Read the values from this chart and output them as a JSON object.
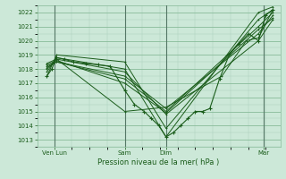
{
  "title": "",
  "xlabel": "Pression niveau de la mer( hPa )",
  "ylim": [
    1012.5,
    1022.5
  ],
  "yticks": [
    1013,
    1014,
    1015,
    1016,
    1017,
    1018,
    1019,
    1020,
    1021,
    1022
  ],
  "bg_color": "#cce8d8",
  "grid_color_major": "#88bb99",
  "grid_color_minor": "#aaccbb",
  "line_color": "#1a5c1a",
  "day_labels": [
    "Ven Lun",
    "Sam",
    "Dim",
    "Mar"
  ],
  "day_positions": [
    0.07,
    0.36,
    0.53,
    0.93
  ],
  "xlim": [
    0.0,
    1.0
  ],
  "series": [
    {
      "x": [
        0.04,
        0.08,
        0.36,
        0.53,
        0.91,
        0.97
      ],
      "y": [
        1017.5,
        1019.0,
        1018.5,
        1013.8,
        1021.5,
        1022.2
      ]
    },
    {
      "x": [
        0.04,
        0.08,
        0.36,
        0.53,
        0.91,
        0.97
      ],
      "y": [
        1017.8,
        1018.8,
        1018.0,
        1013.2,
        1022.0,
        1022.4
      ]
    },
    {
      "x": [
        0.04,
        0.08,
        0.36,
        0.53,
        0.91,
        0.97
      ],
      "y": [
        1018.0,
        1018.7,
        1017.8,
        1014.8,
        1020.0,
        1021.5
      ]
    },
    {
      "x": [
        0.04,
        0.08,
        0.36,
        0.53,
        0.91,
        0.97
      ],
      "y": [
        1018.1,
        1018.5,
        1017.5,
        1015.2,
        1020.5,
        1021.8
      ]
    },
    {
      "x": [
        0.04,
        0.08,
        0.36,
        0.53,
        0.91,
        0.97
      ],
      "y": [
        1018.2,
        1018.5,
        1017.3,
        1015.0,
        1021.0,
        1022.0
      ]
    },
    {
      "x": [
        0.04,
        0.08,
        0.36,
        0.53,
        0.91,
        0.97
      ],
      "y": [
        1018.3,
        1018.6,
        1017.0,
        1014.9,
        1020.8,
        1021.6
      ]
    },
    {
      "x": [
        0.04,
        0.08,
        0.36,
        0.53,
        0.76,
        0.86,
        0.91,
        0.97
      ],
      "y": [
        1018.4,
        1018.7,
        1015.0,
        1015.3,
        1017.5,
        1020.0,
        1020.2,
        1022.2
      ]
    },
    {
      "x": [
        0.04,
        0.06,
        0.08,
        0.11,
        0.15,
        0.2,
        0.25,
        0.3,
        0.36,
        0.4,
        0.44,
        0.47,
        0.5,
        0.53,
        0.56,
        0.59,
        0.62,
        0.65,
        0.68,
        0.71,
        0.75,
        0.79,
        0.83,
        0.87,
        0.91,
        0.94,
        0.97
      ],
      "y": [
        1017.5,
        1018.0,
        1018.8,
        1018.7,
        1018.5,
        1018.4,
        1018.3,
        1018.2,
        1016.5,
        1015.5,
        1015.0,
        1014.5,
        1014.0,
        1013.2,
        1013.5,
        1014.0,
        1014.5,
        1015.0,
        1015.0,
        1015.2,
        1017.3,
        1019.0,
        1019.8,
        1020.5,
        1020.0,
        1021.8,
        1022.2
      ]
    }
  ]
}
